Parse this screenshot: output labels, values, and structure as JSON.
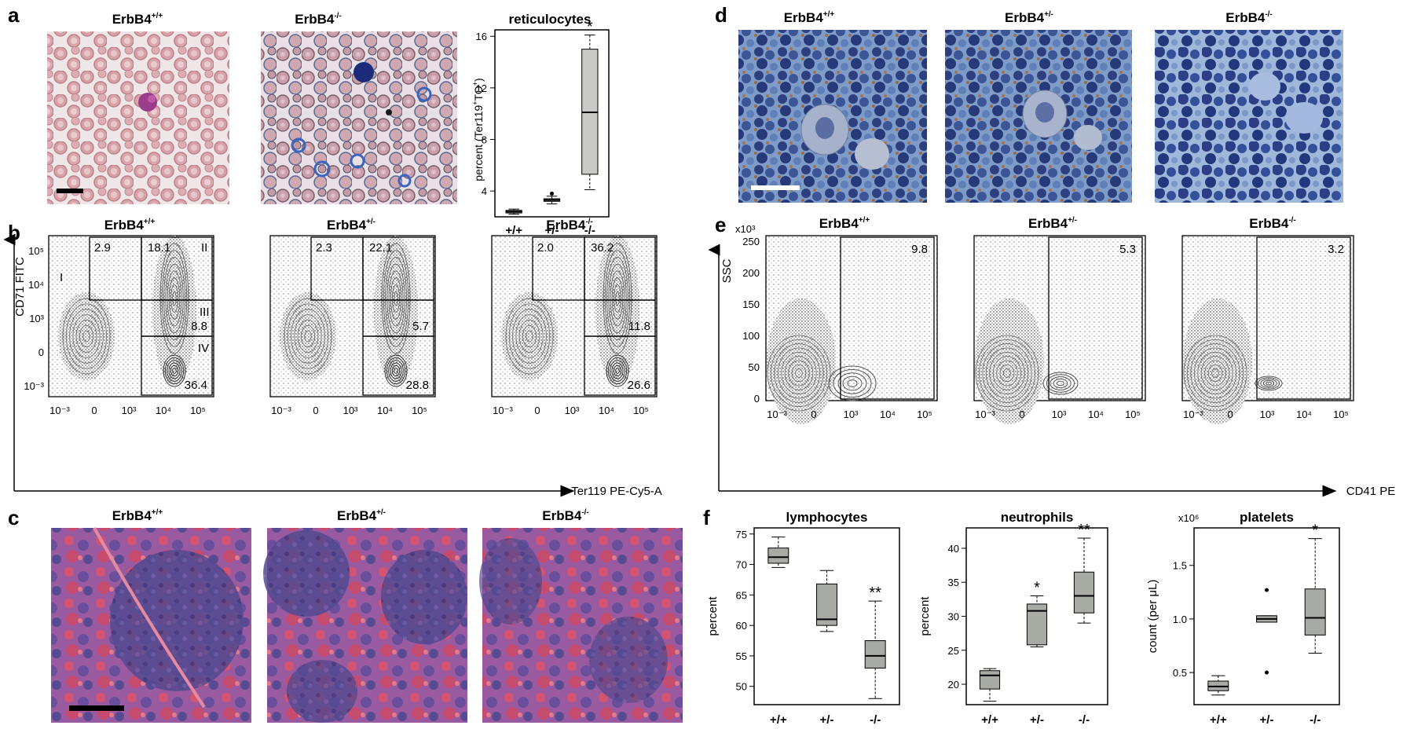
{
  "panel_labels": {
    "a": "a",
    "b": "b",
    "c": "c",
    "d": "d",
    "e": "e",
    "f": "f"
  },
  "genotypes": {
    "wt": {
      "base": "ErbB4",
      "sup": "+/+"
    },
    "het": {
      "base": "ErbB4",
      "sup": "+/-"
    },
    "ko": {
      "base": "ErbB4",
      "sup": "-/-"
    }
  },
  "genotype_short": [
    "+/+",
    "+/-",
    "-/-"
  ],
  "colors": {
    "box_fill": "#c9c9c5",
    "box_fill_dark": "#a8aba4",
    "stain_pink": "#c98a93",
    "he_purple": "#6a4f9c",
    "he_pink": "#d9546e",
    "ihc_blue": "#2e4c8f"
  },
  "panel_a": {
    "chart_title": "reticulocytes",
    "ylabel_main": "percent (Ter119",
    "ylabel_sup1": "+",
    "ylabel_mid": "TO",
    "ylabel_sup2": "+",
    "ylabel_end": ")",
    "yticks": [
      "4",
      "8",
      "12",
      "16"
    ],
    "significance": "*"
  },
  "panel_b": {
    "ylabel": "CD71 FITC",
    "xlabel": "Ter119 PE-Cy5-A",
    "yticks": [
      "10⁵",
      "10⁴",
      "10³",
      "0",
      "10⁻³"
    ],
    "xticks": [
      "10⁻³",
      "0",
      "10³",
      "10⁴",
      "10⁵"
    ],
    "gate_names": [
      "I",
      "II",
      "III",
      "IV"
    ],
    "plots": [
      {
        "g1": "2.9",
        "g2": "18.1",
        "g3": "8.8",
        "g4": "36.4"
      },
      {
        "g1": "2.3",
        "g2": "22.1",
        "g3": "5.7",
        "g4": "28.8"
      },
      {
        "g1": "2.0",
        "g2": "36.2",
        "g3": "11.8",
        "g4": "26.6"
      }
    ]
  },
  "panel_e": {
    "ylabel": "SSC",
    "yexp": "x10³",
    "xlabel": "CD41 PE",
    "yticks": [
      "250",
      "200",
      "150",
      "100",
      "50",
      "0"
    ],
    "xticks": [
      "10⁻³",
      "0",
      "10³",
      "10⁴",
      "10⁵"
    ],
    "plots": [
      {
        "gate": "9.8"
      },
      {
        "gate": "5.3"
      },
      {
        "gate": "3.2"
      }
    ]
  },
  "panel_f": {
    "lymph": {
      "title": "lymphocytes",
      "ylabel": "percent",
      "yticks": [
        "75",
        "70",
        "65",
        "60",
        "55",
        "50"
      ],
      "sig": [
        "",
        "",
        "**"
      ]
    },
    "neut": {
      "title": "neutrophils",
      "ylabel": "percent",
      "yticks": [
        "40",
        "35",
        "30",
        "25",
        "20"
      ],
      "sig": [
        "",
        "*",
        "**"
      ]
    },
    "plt": {
      "title": "platelets",
      "ylabel": "count (per μL)",
      "yexp": "x10⁶",
      "yticks": [
        "1.5",
        "1.0",
        "0.5"
      ],
      "sig": [
        "",
        "",
        "*"
      ]
    }
  },
  "chart_data": [
    {
      "type": "box",
      "title": "reticulocytes",
      "categories": [
        "+/+",
        "+/-",
        "-/-"
      ],
      "ylim": [
        2,
        16.5
      ],
      "boxes": [
        {
          "min": 2.2,
          "q1": 2.3,
          "median": 2.4,
          "q3": 2.5,
          "max": 2.6,
          "outliers": []
        },
        {
          "min": 3.0,
          "q1": 3.2,
          "median": 3.3,
          "q3": 3.4,
          "max": 3.6,
          "outliers": [
            3.8
          ]
        },
        {
          "min": 4.1,
          "q1": 5.3,
          "median": 10.1,
          "q3": 15.0,
          "max": 16.1,
          "outliers": []
        }
      ],
      "ylabel": "percent (Ter119+TO+)"
    },
    {
      "type": "box",
      "title": "lymphocytes",
      "categories": [
        "+/+",
        "+/-",
        "-/-"
      ],
      "ylim": [
        47,
        76
      ],
      "boxes": [
        {
          "min": 69.5,
          "q1": 70.2,
          "median": 71.2,
          "q3": 72.7,
          "max": 74.5,
          "outliers": []
        },
        {
          "min": 59,
          "q1": 60,
          "median": 61,
          "q3": 66.8,
          "max": 69,
          "outliers": []
        },
        {
          "min": 48,
          "q1": 53,
          "median": 55,
          "q3": 57.5,
          "max": 64,
          "outliers": []
        }
      ],
      "ylabel": "percent"
    },
    {
      "type": "box",
      "title": "neutrophils",
      "categories": [
        "+/+",
        "+/-",
        "-/-"
      ],
      "ylim": [
        17,
        43
      ],
      "boxes": [
        {
          "min": 17.5,
          "q1": 19.3,
          "median": 21.3,
          "q3": 22,
          "max": 22.3,
          "outliers": []
        },
        {
          "min": 25.5,
          "q1": 25.8,
          "median": 30.8,
          "q3": 31.8,
          "max": 33,
          "outliers": []
        },
        {
          "min": 29,
          "q1": 30.5,
          "median": 33,
          "q3": 36.5,
          "max": 41.5,
          "outliers": []
        }
      ],
      "ylabel": "percent"
    },
    {
      "type": "box",
      "title": "platelets",
      "categories": [
        "+/+",
        "+/-",
        "-/-"
      ],
      "ylim": [
        0.2,
        1.85
      ],
      "boxes": [
        {
          "min": 0.29,
          "q1": 0.33,
          "median": 0.37,
          "q3": 0.42,
          "max": 0.47,
          "outliers": []
        },
        {
          "min": 0.97,
          "q1": 0.97,
          "median": 1.0,
          "q3": 1.03,
          "max": 1.03,
          "outliers": [
            1.27,
            0.5
          ]
        },
        {
          "min": 0.68,
          "q1": 0.85,
          "median": 1.01,
          "q3": 1.28,
          "max": 1.75,
          "outliers": []
        }
      ],
      "ylabel": "count (per μL)",
      "yexp": "x10⁶"
    }
  ]
}
